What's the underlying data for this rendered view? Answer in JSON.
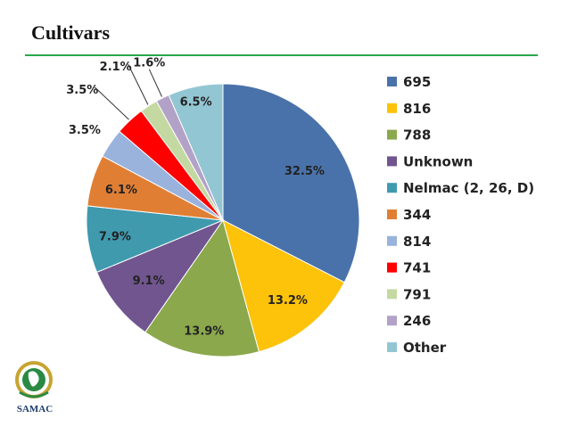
{
  "slide": {
    "title": "Cultivars",
    "logo_text": "SAMAC",
    "accent_color": "#2aa84a"
  },
  "chart_data": {
    "type": "pie",
    "title": "",
    "legend_position": "right",
    "slices": [
      {
        "label": "695",
        "value": 32.5,
        "display": "32.5%",
        "color": "#4a72aa"
      },
      {
        "label": "816",
        "value": 13.2,
        "display": "13.2%",
        "color": "#fdc20a"
      },
      {
        "label": "788",
        "value": 13.9,
        "display": "13.9%",
        "color": "#8ba84c"
      },
      {
        "label": "Unknown",
        "value": 9.1,
        "display": "9.1%",
        "color": "#71558f"
      },
      {
        "label": "Nelmac (2, 26, D)",
        "value": 7.9,
        "display": "7.9%",
        "color": "#3f9aae"
      },
      {
        "label": "344",
        "value": 6.1,
        "display": "6.1%",
        "color": "#e07f34"
      },
      {
        "label": "814",
        "value": 3.5,
        "display": "3.5%",
        "color": "#9ab3dc"
      },
      {
        "label": "741",
        "value": 3.5,
        "display": "3.5%",
        "color": "#ff0000"
      },
      {
        "label": "791",
        "value": 2.1,
        "display": "2.1%",
        "color": "#c4d9a2"
      },
      {
        "label": "246",
        "value": 1.6,
        "display": "1.6%",
        "color": "#b3a2c7"
      },
      {
        "label": "Other",
        "value": 6.5,
        "display": "6.5%",
        "color": "#93c6d3"
      }
    ]
  }
}
